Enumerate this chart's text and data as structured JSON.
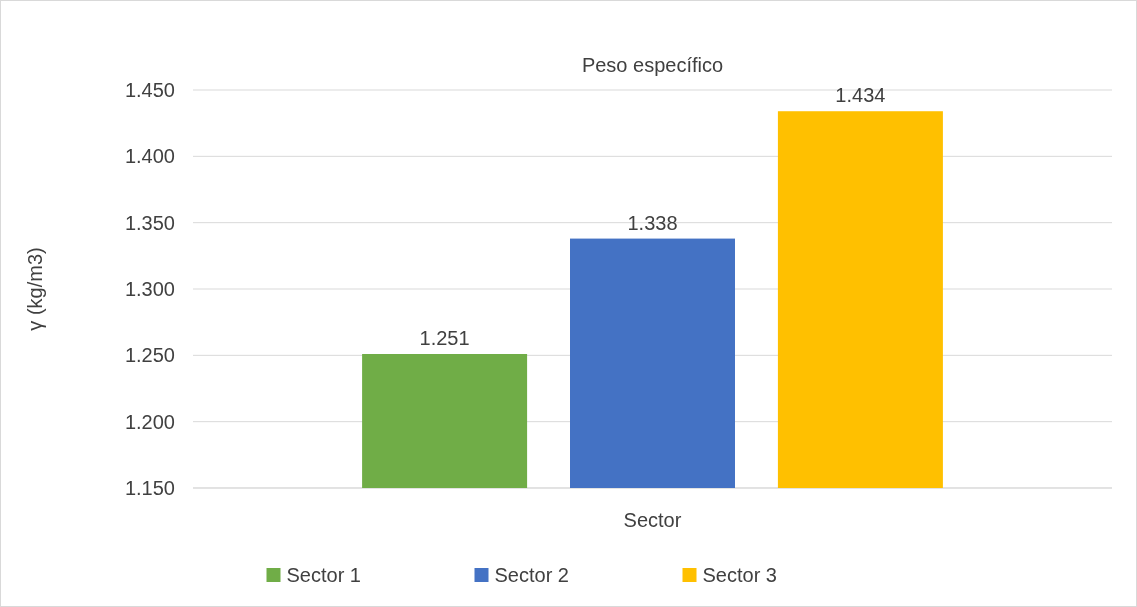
{
  "chart_data": {
    "type": "bar",
    "title": "Peso específico",
    "xlabel": "Sector",
    "ylabel": "γ (kg/m3)",
    "categories": [
      null
    ],
    "series": [
      {
        "name": "Sector 1",
        "color": "#70ad47",
        "values": [
          1.251
        ]
      },
      {
        "name": "Sector 2",
        "color": "#4472c4",
        "values": [
          1.338
        ]
      },
      {
        "name": "Sector 3",
        "color": "#ffc000",
        "values": [
          1.434
        ]
      }
    ],
    "ylim": [
      1.15,
      1.45
    ],
    "yticks": [
      {
        "value": 1.15,
        "label": "1.150"
      },
      {
        "value": 1.2,
        "label": "1.200"
      },
      {
        "value": 1.25,
        "label": "1.250"
      },
      {
        "value": 1.3,
        "label": "1.300"
      },
      {
        "value": 1.35,
        "label": "1.350"
      },
      {
        "value": 1.4,
        "label": "1.400"
      },
      {
        "value": 1.45,
        "label": "1.450"
      }
    ],
    "grid": "y",
    "legend": "bottom",
    "data_labels": true
  }
}
